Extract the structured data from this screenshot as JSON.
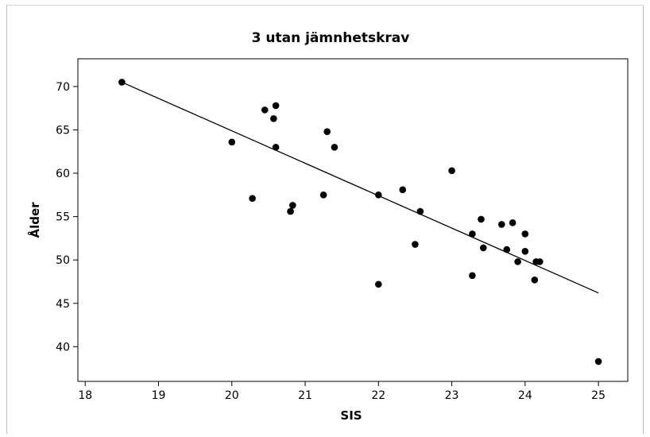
{
  "chart_data": {
    "type": "scatter",
    "title": "3 utan jämnhetskrav",
    "xlabel": "SIS",
    "ylabel": "Ålder",
    "xlim": [
      17.9,
      25.4
    ],
    "ylim": [
      36.0,
      73.2
    ],
    "xticks": [
      18,
      19,
      20,
      21,
      22,
      23,
      24,
      25
    ],
    "yticks": [
      40,
      45,
      50,
      55,
      60,
      65,
      70
    ],
    "grid": false,
    "legend": "none",
    "colors": {
      "points": "#000000",
      "line": "#000000",
      "axes": "#000000"
    },
    "points": [
      {
        "x": 18.5,
        "y": 70.5
      },
      {
        "x": 20.0,
        "y": 63.6
      },
      {
        "x": 20.28,
        "y": 57.1
      },
      {
        "x": 20.45,
        "y": 67.3
      },
      {
        "x": 20.57,
        "y": 66.3
      },
      {
        "x": 20.6,
        "y": 67.8
      },
      {
        "x": 20.6,
        "y": 63.0
      },
      {
        "x": 20.8,
        "y": 55.6
      },
      {
        "x": 20.83,
        "y": 56.3
      },
      {
        "x": 21.25,
        "y": 57.5
      },
      {
        "x": 21.3,
        "y": 64.8
      },
      {
        "x": 21.4,
        "y": 63.0
      },
      {
        "x": 22.0,
        "y": 57.5
      },
      {
        "x": 22.0,
        "y": 47.2
      },
      {
        "x": 22.33,
        "y": 58.1
      },
      {
        "x": 22.5,
        "y": 51.8
      },
      {
        "x": 22.57,
        "y": 55.6
      },
      {
        "x": 23.0,
        "y": 60.3
      },
      {
        "x": 23.28,
        "y": 53.0
      },
      {
        "x": 23.28,
        "y": 48.2
      },
      {
        "x": 23.4,
        "y": 54.7
      },
      {
        "x": 23.43,
        "y": 51.4
      },
      {
        "x": 23.68,
        "y": 54.1
      },
      {
        "x": 23.75,
        "y": 51.2
      },
      {
        "x": 23.83,
        "y": 54.3
      },
      {
        "x": 23.9,
        "y": 49.8
      },
      {
        "x": 24.0,
        "y": 53.0
      },
      {
        "x": 24.0,
        "y": 51.0
      },
      {
        "x": 24.13,
        "y": 47.7
      },
      {
        "x": 24.15,
        "y": 49.8
      },
      {
        "x": 24.2,
        "y": 49.8
      },
      {
        "x": 25.0,
        "y": 38.3
      }
    ],
    "fit_line": {
      "x": [
        18.5,
        25.0
      ],
      "y": [
        70.5,
        46.2
      ]
    }
  }
}
